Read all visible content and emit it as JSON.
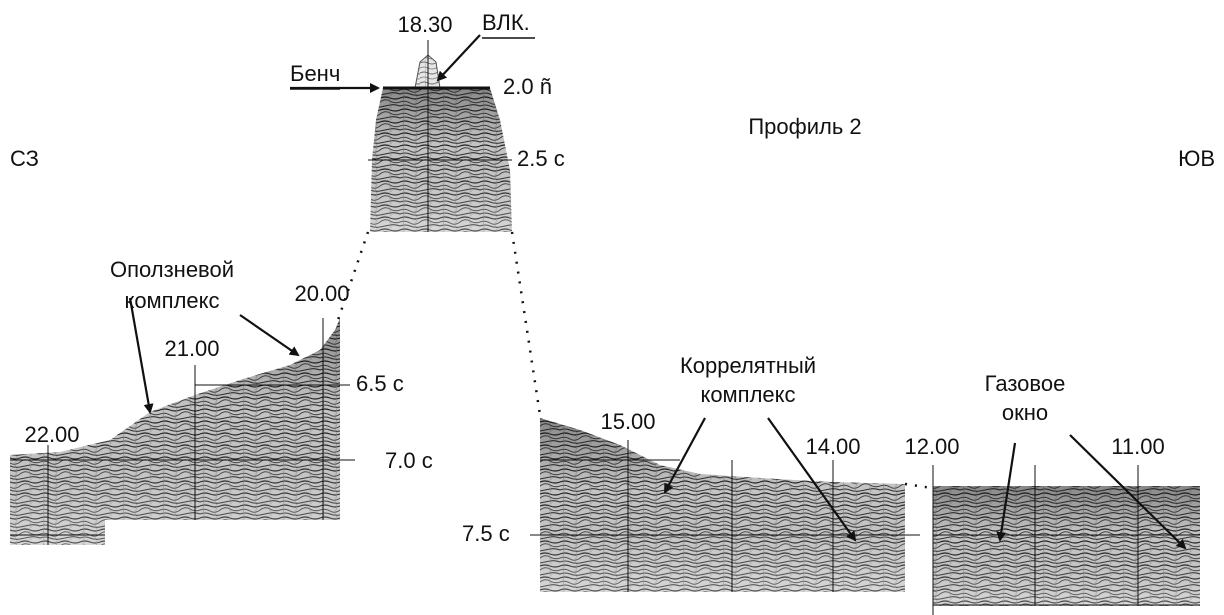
{
  "direction": {
    "left": "СЗ",
    "right": "ЮВ"
  },
  "profile_title": "Профиль 2",
  "time_marks": [
    "2.0 ñ",
    "2.5 с",
    "6.5 с",
    "7.0 с",
    "7.5 с"
  ],
  "shot_points": [
    "18.30",
    "20.00",
    "21.00",
    "22.00",
    "15.00",
    "14.00",
    "12.00",
    "11.00"
  ],
  "annotations": {
    "vlk": "ВЛК.",
    "bench": "Бенч",
    "landslide": [
      "Оползневой",
      "комплекс"
    ],
    "correlated": [
      "Коррелятный",
      "комплекс"
    ],
    "gas_window": [
      "Газовое",
      "окно"
    ]
  }
}
